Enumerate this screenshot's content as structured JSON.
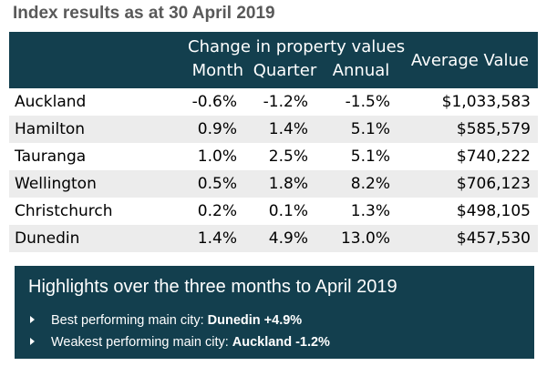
{
  "title": "Index results as at 30 April 2019",
  "table": {
    "header": {
      "change_group": "Change in property values",
      "month": "Month",
      "quarter": "Quarter",
      "annual": "Annual",
      "average_value": "Average Value"
    },
    "rows": [
      {
        "city": "Auckland",
        "month": "-0.6%",
        "quarter": "-1.2%",
        "annual": "-1.5%",
        "average_value": "$1,033,583"
      },
      {
        "city": "Hamilton",
        "month": "0.9%",
        "quarter": "1.4%",
        "annual": "5.1%",
        "average_value": "$585,579"
      },
      {
        "city": "Tauranga",
        "month": "1.0%",
        "quarter": "2.5%",
        "annual": "5.1%",
        "average_value": "$740,222"
      },
      {
        "city": "Wellington",
        "month": "0.5%",
        "quarter": "1.8%",
        "annual": "8.2%",
        "average_value": "$706,123"
      },
      {
        "city": "Christchurch",
        "month": "0.2%",
        "quarter": "0.1%",
        "annual": "1.3%",
        "average_value": "$498,105"
      },
      {
        "city": "Dunedin",
        "month": "1.4%",
        "quarter": "4.9%",
        "annual": "13.0%",
        "average_value": "$457,530"
      }
    ]
  },
  "highlights": {
    "title": "Highlights over the three months to April 2019",
    "items": [
      {
        "label": "Best performing main city:",
        "value": "Dunedin +4.9%"
      },
      {
        "label": "Weakest performing main city:",
        "value": "Auckland -1.2%"
      }
    ]
  },
  "colors": {
    "header_bg": "#133f4e",
    "title_text": "#595959",
    "row_stripe": "#ececec"
  }
}
